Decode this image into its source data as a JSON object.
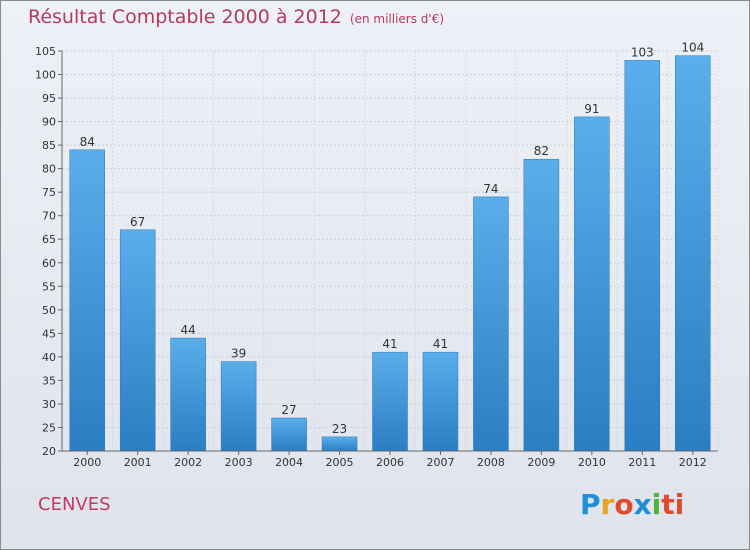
{
  "title": "Résultat Comptable 2000 à 2012",
  "subtitle": "(en milliers d'€)",
  "commune": "CENVES",
  "logo": [
    "P",
    "r",
    "o",
    "x",
    "i",
    "ti"
  ],
  "chart_data": {
    "type": "bar",
    "categories": [
      "2000",
      "2001",
      "2002",
      "2003",
      "2004",
      "2005",
      "2006",
      "2007",
      "2008",
      "2009",
      "2010",
      "2011",
      "2012"
    ],
    "values": [
      84,
      67,
      44,
      39,
      27,
      23,
      41,
      41,
      74,
      82,
      91,
      103,
      104
    ],
    "ylim": [
      20,
      105
    ],
    "yticks": [
      20,
      25,
      30,
      35,
      40,
      45,
      50,
      55,
      60,
      65,
      70,
      75,
      80,
      85,
      90,
      95,
      100,
      105
    ],
    "grid": true,
    "bar_color": "#4a9fe0",
    "legend": "none"
  }
}
